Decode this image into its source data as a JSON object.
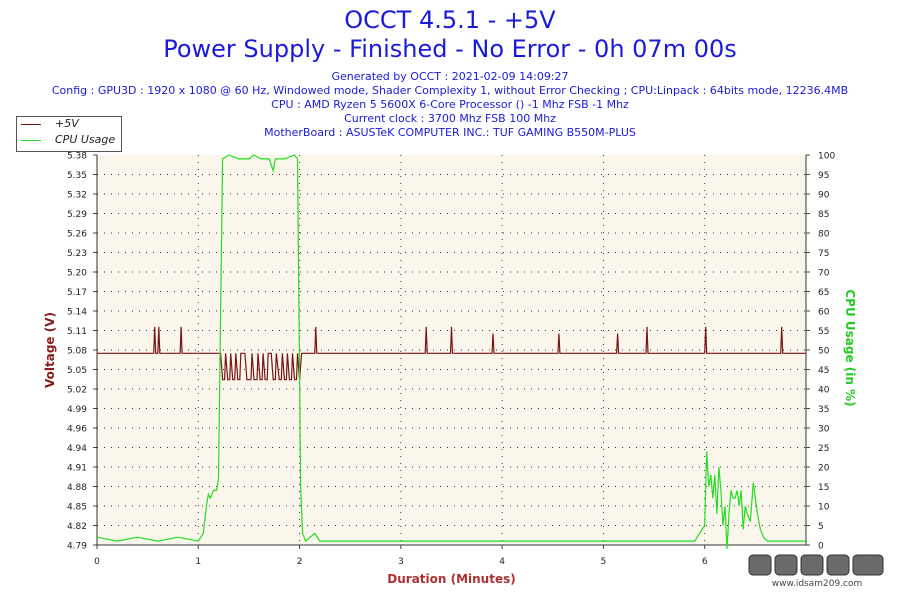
{
  "header": {
    "title": "OCCT 4.5.1 - +5V",
    "subtitle": "Power Supply - Finished - No Error - 0h 07m 00s",
    "info_lines": [
      "Generated by OCCT : 2021-02-09 14:09:27",
      "Config : GPU3D : 1920 x 1080 @ 60 Hz, Windowed mode, Shader Complexity 1, without Error Checking ; CPU:Linpack : 64bits mode, 12236.4MB",
      "CPU : AMD Ryzen 5 5600X 6-Core Processor () -1 Mhz FSB -1 Mhz",
      "Current clock : 3700 Mhz FSB 100 Mhz",
      "MotherBoard : ASUSTeK COMPUTER INC.: TUF GAMING B550M-PLUS"
    ]
  },
  "legend": {
    "items": [
      {
        "label": "+5V",
        "color": "#7a1515"
      },
      {
        "label": "CPU Usage",
        "color": "#22dd22"
      }
    ]
  },
  "watermark": {
    "url": "www.idsam209.com"
  },
  "chart_data": {
    "type": "line",
    "xlabel": "Duration (Minutes)",
    "ylabel_left": "Voltage (V)",
    "ylabel_right": "CPU Usage (in %)",
    "xlim": [
      0,
      7
    ],
    "x_ticks": [
      0,
      1,
      2,
      3,
      4,
      5,
      6
    ],
    "ylim_left": [
      4.79,
      5.38
    ],
    "y_ticks_left": [
      "4.79",
      "4.82",
      "4.85",
      "4.88",
      "4.91",
      "4.94",
      "4.96",
      "4.99",
      "5.02",
      "5.05",
      "5.08",
      "5.11",
      "5.14",
      "5.17",
      "5.20",
      "5.23",
      "5.26",
      "5.29",
      "5.32",
      "5.35",
      "5.38"
    ],
    "ylim_right": [
      0,
      100
    ],
    "y_ticks_right": [
      0,
      5,
      10,
      15,
      20,
      25,
      30,
      35,
      40,
      45,
      50,
      55,
      60,
      65,
      70,
      75,
      80,
      85,
      90,
      95,
      100
    ],
    "grid": true,
    "legend_position": "top-left",
    "colors": {
      "voltage": "#7a1515",
      "cpu": "#22dd22",
      "plot_bg": "#fbf6ec",
      "grid": "#333333",
      "axis_title_left": "#8b1a1a",
      "axis_title_right": "#22cc22",
      "axis_title_x": "#b03030"
    },
    "series": [
      {
        "name": "+5V",
        "axis": "left",
        "baseline": 5.08,
        "points": [
          [
            0,
            5.08
          ],
          [
            0.56,
            5.08
          ],
          [
            0.57,
            5.12
          ],
          [
            0.58,
            5.08
          ],
          [
            0.6,
            5.08
          ],
          [
            0.61,
            5.12
          ],
          [
            0.62,
            5.08
          ],
          [
            0.82,
            5.08
          ],
          [
            0.83,
            5.12
          ],
          [
            0.84,
            5.08
          ],
          [
            1.22,
            5.08
          ],
          [
            1.24,
            5.04
          ],
          [
            1.26,
            5.04
          ],
          [
            1.27,
            5.08
          ],
          [
            1.29,
            5.04
          ],
          [
            1.31,
            5.04
          ],
          [
            1.32,
            5.08
          ],
          [
            1.34,
            5.04
          ],
          [
            1.36,
            5.04
          ],
          [
            1.37,
            5.08
          ],
          [
            1.39,
            5.04
          ],
          [
            1.41,
            5.04
          ],
          [
            1.42,
            5.08
          ],
          [
            1.46,
            5.08
          ],
          [
            1.48,
            5.04
          ],
          [
            1.52,
            5.04
          ],
          [
            1.53,
            5.08
          ],
          [
            1.55,
            5.04
          ],
          [
            1.58,
            5.04
          ],
          [
            1.59,
            5.08
          ],
          [
            1.61,
            5.04
          ],
          [
            1.63,
            5.04
          ],
          [
            1.64,
            5.08
          ],
          [
            1.66,
            5.04
          ],
          [
            1.68,
            5.04
          ],
          [
            1.69,
            5.08
          ],
          [
            1.72,
            5.08
          ],
          [
            1.74,
            5.04
          ],
          [
            1.76,
            5.04
          ],
          [
            1.77,
            5.08
          ],
          [
            1.8,
            5.04
          ],
          [
            1.82,
            5.04
          ],
          [
            1.83,
            5.08
          ],
          [
            1.85,
            5.04
          ],
          [
            1.87,
            5.04
          ],
          [
            1.88,
            5.08
          ],
          [
            1.9,
            5.04
          ],
          [
            1.92,
            5.04
          ],
          [
            1.93,
            5.08
          ],
          [
            1.95,
            5.04
          ],
          [
            1.97,
            5.04
          ],
          [
            1.98,
            5.08
          ],
          [
            2.0,
            5.04
          ],
          [
            2.02,
            5.08
          ],
          [
            2.15,
            5.08
          ],
          [
            2.16,
            5.12
          ],
          [
            2.17,
            5.08
          ],
          [
            3.24,
            5.08
          ],
          [
            3.25,
            5.12
          ],
          [
            3.26,
            5.08
          ],
          [
            3.49,
            5.08
          ],
          [
            3.5,
            5.12
          ],
          [
            3.51,
            5.08
          ],
          [
            3.9,
            5.08
          ],
          [
            3.91,
            5.11
          ],
          [
            3.92,
            5.08
          ],
          [
            4.55,
            5.08
          ],
          [
            4.56,
            5.11
          ],
          [
            4.57,
            5.08
          ],
          [
            5.13,
            5.08
          ],
          [
            5.14,
            5.11
          ],
          [
            5.15,
            5.08
          ],
          [
            5.42,
            5.08
          ],
          [
            5.43,
            5.12
          ],
          [
            5.44,
            5.08
          ],
          [
            6.0,
            5.08
          ],
          [
            6.01,
            5.12
          ],
          [
            6.02,
            5.08
          ],
          [
            6.75,
            5.08
          ],
          [
            6.76,
            5.12
          ],
          [
            6.77,
            5.08
          ],
          [
            7.0,
            5.08
          ]
        ]
      },
      {
        "name": "CPU Usage",
        "axis": "right",
        "points": [
          [
            0,
            2
          ],
          [
            0.2,
            1
          ],
          [
            0.4,
            2
          ],
          [
            0.6,
            1
          ],
          [
            0.8,
            2
          ],
          [
            1.0,
            1
          ],
          [
            1.05,
            3
          ],
          [
            1.08,
            10
          ],
          [
            1.1,
            13
          ],
          [
            1.12,
            12
          ],
          [
            1.15,
            14
          ],
          [
            1.18,
            14
          ],
          [
            1.2,
            17
          ],
          [
            1.22,
            60
          ],
          [
            1.24,
            99
          ],
          [
            1.3,
            100
          ],
          [
            1.4,
            99
          ],
          [
            1.5,
            99
          ],
          [
            1.55,
            100
          ],
          [
            1.62,
            99
          ],
          [
            1.7,
            99
          ],
          [
            1.74,
            96
          ],
          [
            1.76,
            99
          ],
          [
            1.85,
            99
          ],
          [
            1.95,
            100
          ],
          [
            1.98,
            99
          ],
          [
            1.99,
            70
          ],
          [
            2.01,
            15
          ],
          [
            2.03,
            3
          ],
          [
            2.06,
            1
          ],
          [
            2.15,
            3
          ],
          [
            2.2,
            1
          ],
          [
            2.5,
            1
          ],
          [
            3.0,
            1
          ],
          [
            3.5,
            1
          ],
          [
            4.0,
            1
          ],
          [
            4.5,
            1
          ],
          [
            5.0,
            1
          ],
          [
            5.5,
            1
          ],
          [
            5.9,
            1
          ],
          [
            6.0,
            5
          ],
          [
            6.02,
            24
          ],
          [
            6.04,
            15
          ],
          [
            6.06,
            18
          ],
          [
            6.08,
            12
          ],
          [
            6.1,
            18
          ],
          [
            6.12,
            8
          ],
          [
            6.14,
            20
          ],
          [
            6.16,
            14
          ],
          [
            6.18,
            5
          ],
          [
            6.2,
            10
          ],
          [
            6.22,
            -1
          ],
          [
            6.24,
            8
          ],
          [
            6.26,
            14
          ],
          [
            6.28,
            12
          ],
          [
            6.3,
            12
          ],
          [
            6.32,
            14
          ],
          [
            6.34,
            10
          ],
          [
            6.36,
            14
          ],
          [
            6.38,
            4
          ],
          [
            6.4,
            10
          ],
          [
            6.42,
            8
          ],
          [
            6.45,
            6
          ],
          [
            6.48,
            16
          ],
          [
            6.5,
            12
          ],
          [
            6.52,
            8
          ],
          [
            6.55,
            4
          ],
          [
            6.58,
            2
          ],
          [
            6.62,
            1
          ],
          [
            6.7,
            1
          ],
          [
            6.8,
            1
          ],
          [
            7.0,
            1
          ]
        ]
      }
    ]
  }
}
